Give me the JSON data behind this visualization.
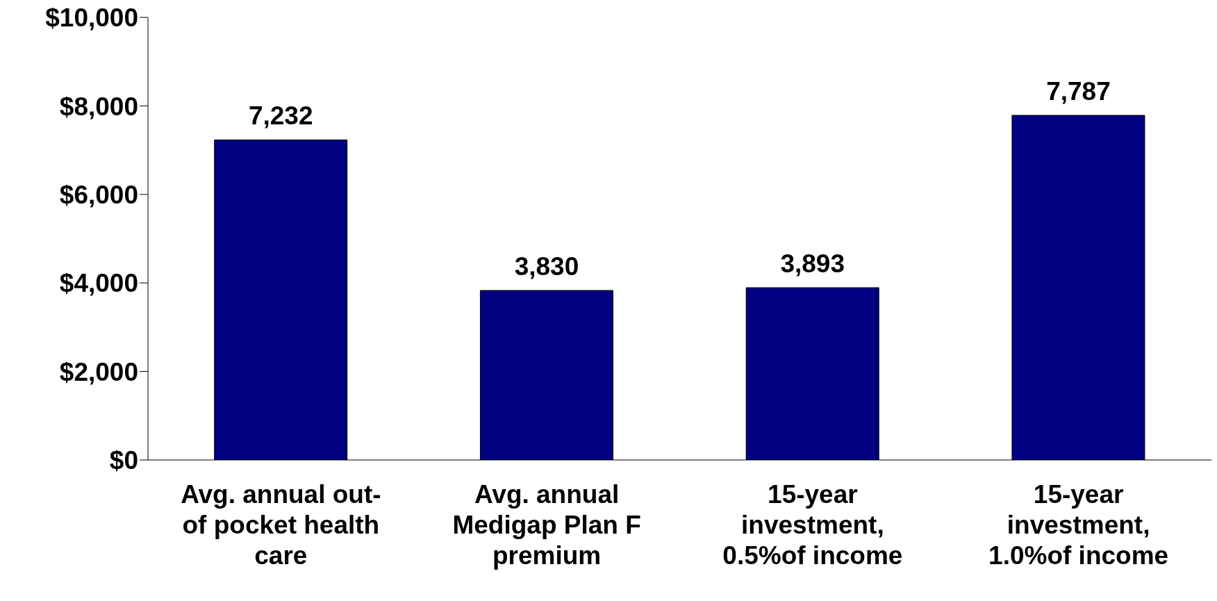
{
  "chart_data": {
    "type": "bar",
    "categories": [
      "Avg. annual out-of pocket health care",
      "Avg. annual Medigap Plan F premium",
      "15-year investment, 0.5%of income",
      "15-year investment, 1.0%of income"
    ],
    "values": [
      7232,
      3830,
      3893,
      7787
    ],
    "color": "#000080",
    "value_labels": [
      "7,232",
      "3,830",
      "3,893",
      "7,787"
    ],
    "ylim": [
      0,
      10000
    ],
    "yticks": [
      {
        "value": 0,
        "label": "$0"
      },
      {
        "value": 2000,
        "label": "$2,000"
      },
      {
        "value": 4000,
        "label": "$4,000"
      },
      {
        "value": 6000,
        "label": "$6,000"
      },
      {
        "value": 8000,
        "label": "$8,000"
      },
      {
        "value": 10000,
        "label": "$10,000"
      }
    ],
    "grid": false,
    "legend": false
  }
}
